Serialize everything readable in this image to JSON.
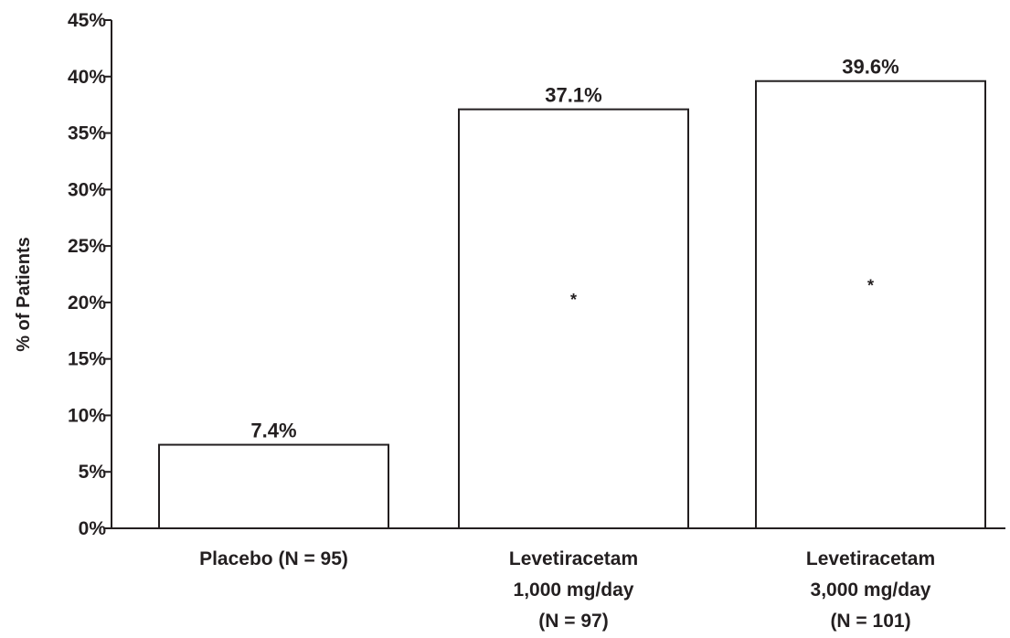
{
  "chart_data": {
    "type": "bar",
    "categories": [
      [
        "Placebo (N = 95)"
      ],
      [
        "Levetiracetam",
        "1,000 mg/day",
        "(N = 97)"
      ],
      [
        "Levetiracetam",
        "3,000 mg/day",
        "(N = 101)"
      ]
    ],
    "values": [
      7.4,
      37.1,
      39.6
    ],
    "value_labels": [
      "7.4%",
      "37.1%",
      "39.6%"
    ],
    "significance_markers": [
      "",
      "*",
      "*"
    ],
    "ylabel": "% of Patients",
    "xlabel": "",
    "ylim": [
      0,
      45
    ],
    "y_ticks": [
      0,
      5,
      10,
      15,
      20,
      25,
      30,
      35,
      40,
      45
    ],
    "y_tick_suffix": "%",
    "grid": false,
    "legend": "none",
    "colors": {
      "bar_fill": "#ffffff",
      "bar_stroke": "#231f20",
      "axis": "#231f20",
      "text": "#231f20"
    }
  }
}
